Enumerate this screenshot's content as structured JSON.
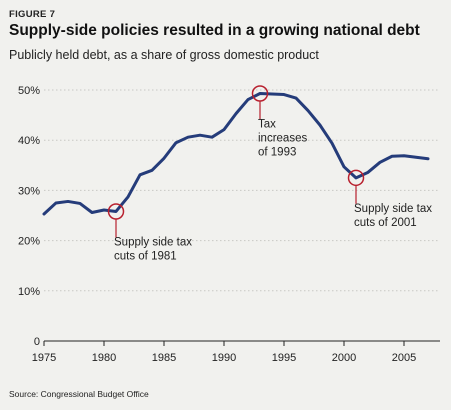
{
  "figure_label": "FIGURE 7",
  "title": "Supply-side policies resulted in a growing national debt",
  "subtitle": "Publicly held debt, as a share of gross domestic product",
  "source": "Source: Congressional Budget Office",
  "colors": {
    "line": "#253c7a",
    "highlight": "#b8202e",
    "grid": "#c8c8c4",
    "background": "#f1f1ee"
  },
  "chart_data": {
    "type": "line",
    "title": "Supply-side policies resulted in a growing national debt",
    "subtitle": "Publicly held debt, as a share of gross domestic product",
    "xlabel": "",
    "ylabel": "",
    "xlim": [
      1975,
      2008
    ],
    "ylim": [
      0,
      50
    ],
    "x_ticks": [
      1975,
      1980,
      1985,
      1990,
      1995,
      2000,
      2005
    ],
    "y_ticks": [
      {
        "value": 0,
        "label": "0"
      },
      {
        "value": 10,
        "label": "10%"
      },
      {
        "value": 20,
        "label": "20%"
      },
      {
        "value": 30,
        "label": "30%"
      },
      {
        "value": 40,
        "label": "40%"
      },
      {
        "value": 50,
        "label": "50%"
      }
    ],
    "grid": true,
    "series": [
      {
        "x": [
          1975,
          1976,
          1977,
          1978,
          1979,
          1980,
          1981,
          1982,
          1983,
          1984,
          1985,
          1986,
          1987,
          1988,
          1989,
          1990,
          1991,
          1992,
          1993,
          1994,
          1995,
          1996,
          1997,
          1998,
          1999,
          2000,
          2001,
          2002,
          2003,
          2004,
          2005,
          2006,
          2007
        ],
        "values": [
          25.3,
          27.5,
          27.8,
          27.4,
          25.6,
          26.1,
          25.8,
          28.7,
          33.1,
          34.0,
          36.4,
          39.5,
          40.6,
          41.0,
          40.6,
          42.1,
          45.3,
          48.1,
          49.3,
          49.2,
          49.1,
          48.4,
          45.9,
          43.0,
          39.4,
          34.7,
          32.5,
          33.6,
          35.6,
          36.8,
          36.9,
          36.6,
          36.3
        ]
      }
    ],
    "annotations": [
      {
        "x": 1981,
        "y": 25.8,
        "lines": [
          "Supply side tax",
          "cuts of 1981"
        ],
        "direction": "down"
      },
      {
        "x": 1993,
        "y": 49.3,
        "lines": [
          "Tax",
          "increases",
          "of 1993"
        ],
        "direction": "down"
      },
      {
        "x": 2001,
        "y": 32.5,
        "lines": [
          "Supply side tax",
          "cuts of 2001"
        ],
        "direction": "down"
      }
    ]
  }
}
